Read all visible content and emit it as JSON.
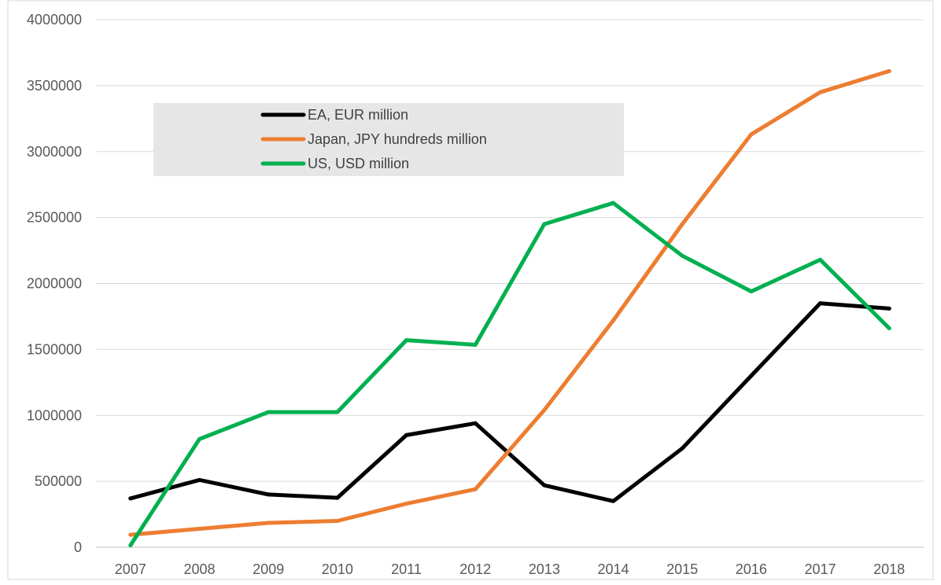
{
  "chart_data": {
    "type": "line",
    "title": "",
    "xlabel": "",
    "ylabel": "",
    "categories": [
      "2007",
      "2008",
      "2009",
      "2010",
      "2011",
      "2012",
      "2013",
      "2014",
      "2015",
      "2016",
      "2017",
      "2018"
    ],
    "yticks": [
      "0",
      "500000",
      "1000000",
      "1500000",
      "2000000",
      "2500000",
      "3000000",
      "3500000",
      "4000000"
    ],
    "ylim": [
      0,
      4000000
    ],
    "grid": true,
    "legend_position": "upper-left",
    "series": [
      {
        "name": "EA, EUR million",
        "color": "#000000",
        "values": [
          370000,
          510000,
          400000,
          375000,
          850000,
          940000,
          470000,
          350000,
          750000,
          1300000,
          1850000,
          1810000
        ]
      },
      {
        "name": "Japan, JPY hundreds million",
        "color": "#ED7D31",
        "values": [
          95000,
          140000,
          185000,
          200000,
          330000,
          440000,
          1040000,
          1720000,
          2450000,
          3130000,
          3450000,
          3610000
        ]
      },
      {
        "name": "US, USD million",
        "color": "#00B050",
        "values": [
          15000,
          820000,
          1025000,
          1025000,
          1570000,
          1535000,
          2450000,
          2610000,
          2210000,
          1940000,
          2180000,
          1660000
        ]
      }
    ]
  }
}
